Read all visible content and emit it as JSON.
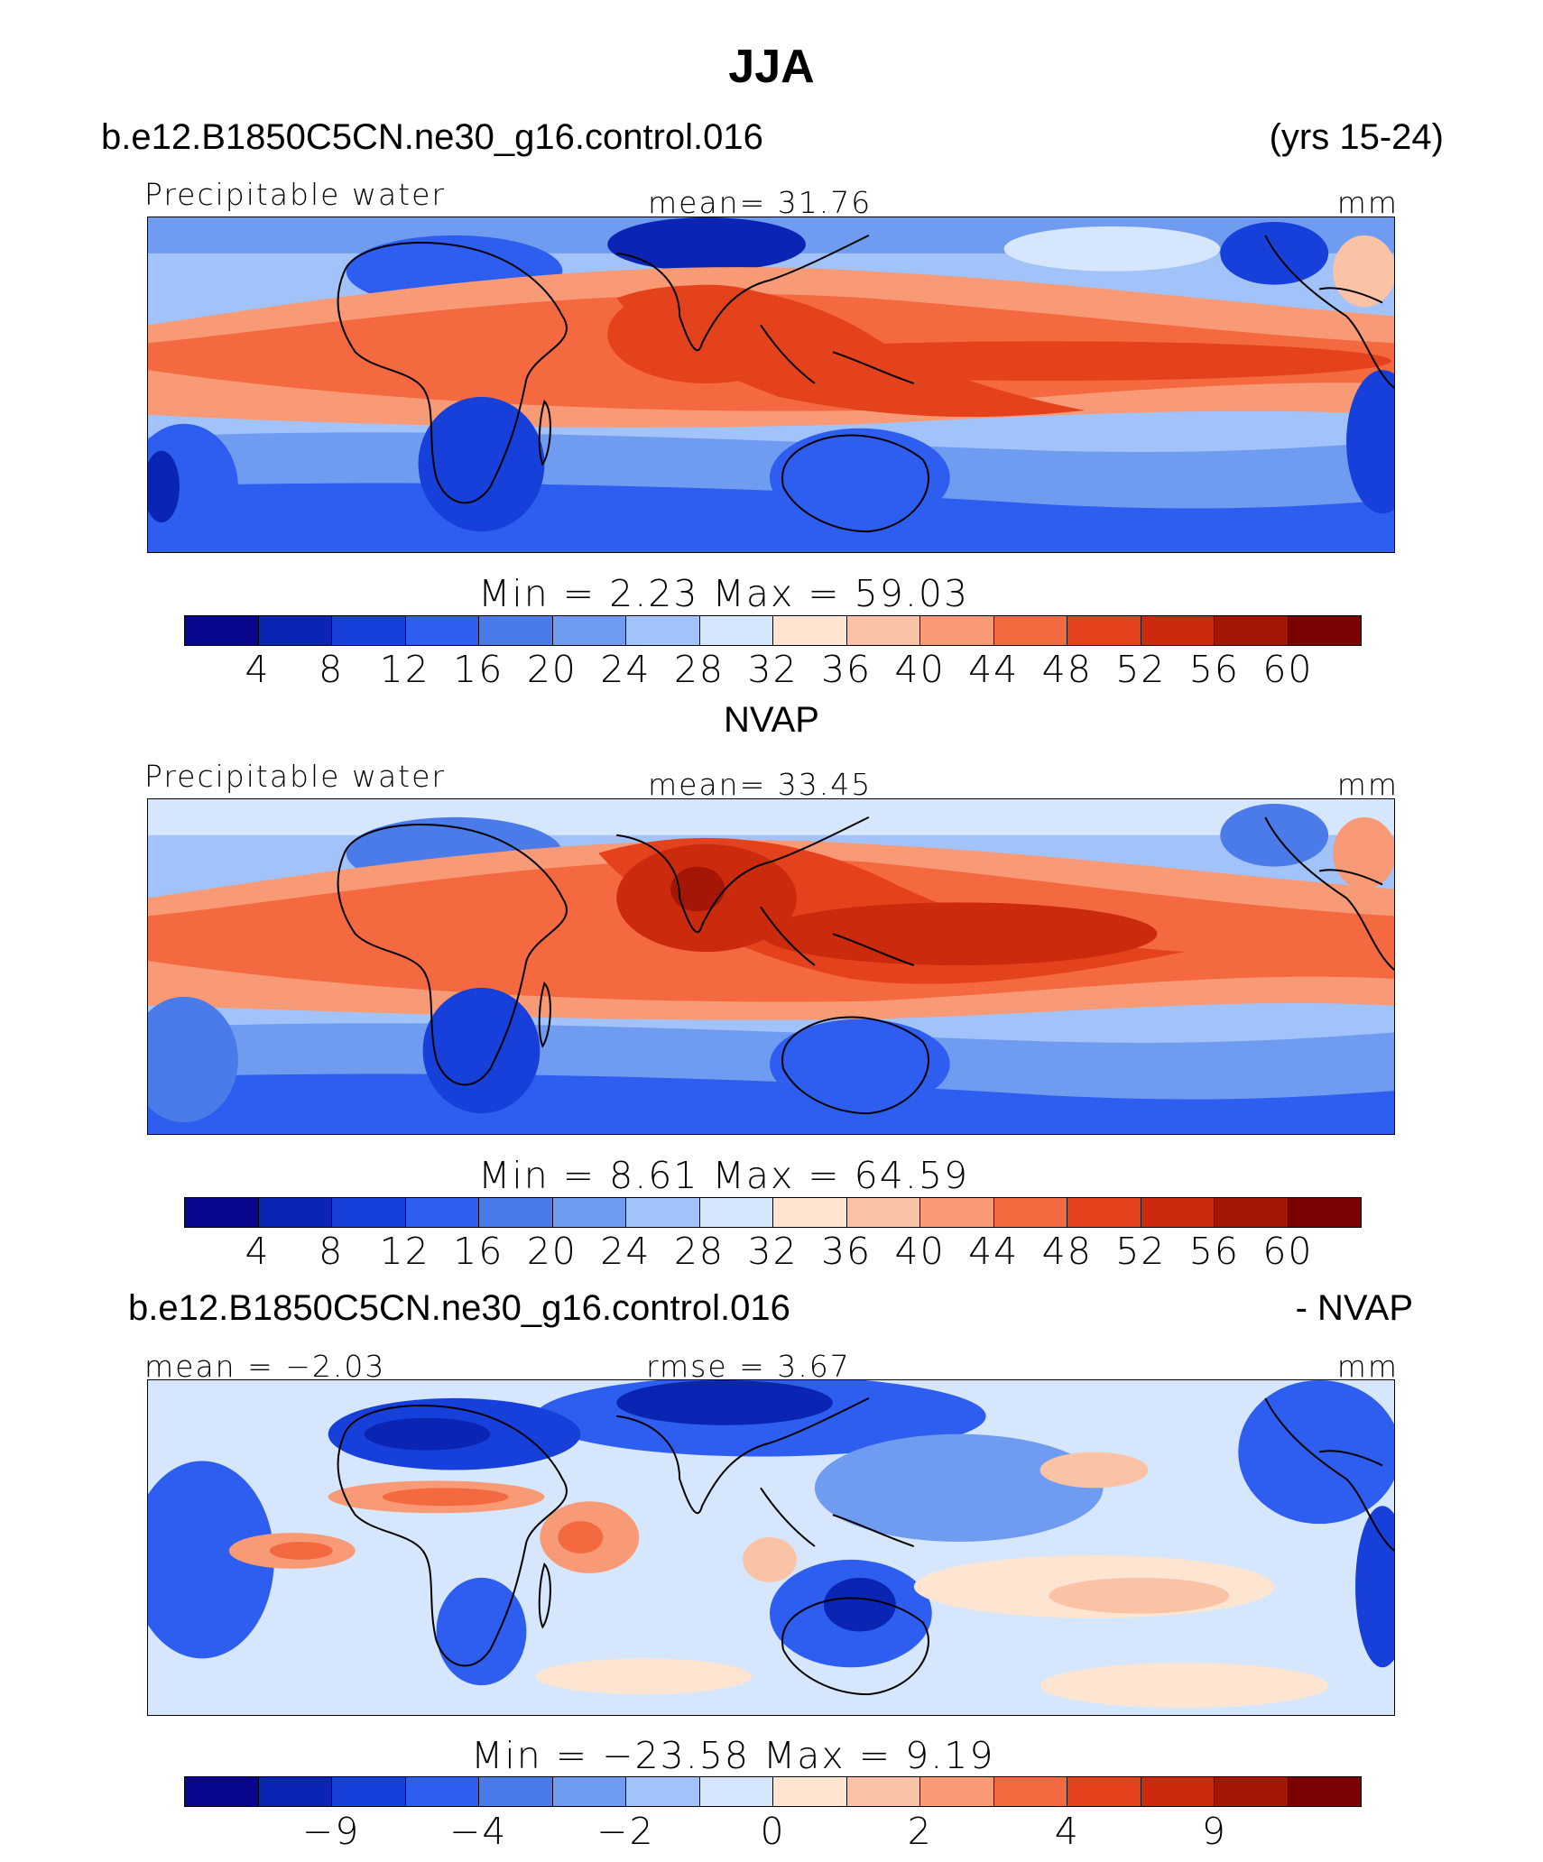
{
  "title": "JJA",
  "case_name": "b.e12.B1850C5CN.ne30_g16.control.016",
  "years": "(yrs 15-24)",
  "colors": [
    "#08068f",
    "#0a25b4",
    "#1640d9",
    "#2e5ef0",
    "#4a7be8",
    "#6f9bf0",
    "#a2c2fa",
    "#d6e6fc",
    "#fde5d2",
    "#fbc3a6",
    "#f99a76",
    "#f4693f",
    "#e4421d",
    "#cc2a0c",
    "#a51607",
    "#7c0304"
  ],
  "panels": [
    {
      "id": "model",
      "variable": "Precipitable water",
      "stat_left": "",
      "stat_center": "mean=   31.76",
      "units": "mm",
      "minmax": "Min  =     2.23  Max  =    59.03",
      "ticks": [
        "4",
        "8",
        "12",
        "16",
        "20",
        "24",
        "28",
        "32",
        "36",
        "40",
        "44",
        "48",
        "52",
        "56",
        "60"
      ]
    },
    {
      "id": "obs",
      "header": "NVAP",
      "variable": "Precipitable water",
      "stat_left": "",
      "stat_center": "mean=   33.45",
      "units": "mm",
      "minmax": "Min  =     8.61  Max  =    64.59",
      "ticks": [
        "4",
        "8",
        "12",
        "16",
        "20",
        "24",
        "28",
        "32",
        "36",
        "40",
        "44",
        "48",
        "52",
        "56",
        "60"
      ]
    },
    {
      "id": "diff",
      "case_left": "b.e12.B1850C5CN.ne30_g16.control.016",
      "case_right": "- NVAP",
      "variable": "",
      "stat_left": "mean  =   −2.03",
      "stat_center": "rmse  =     3.67",
      "units": "mm",
      "minmax": "Min  = −23.58  Max  =     9.19",
      "ticks": [
        "−9",
        "−4",
        "−2",
        "0",
        "2",
        "4",
        "9"
      ]
    }
  ]
}
